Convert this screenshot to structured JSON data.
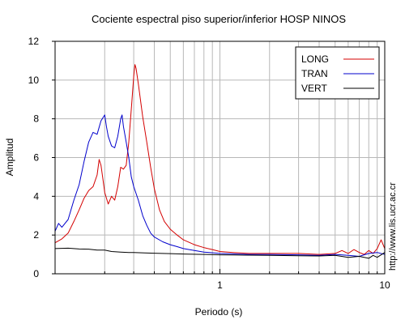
{
  "chart_data": {
    "type": "line",
    "title": "Cociente espectral piso superior/inferior  HOSP NINOS",
    "xlabel": "Periodo (s)",
    "ylabel": "Amplitud",
    "x_scale": "log",
    "xlim": [
      0.1,
      10
    ],
    "ylim": [
      0,
      12
    ],
    "x_tick_labels": [
      {
        "value": 1,
        "label": "1"
      },
      {
        "value": 10,
        "label": "10"
      }
    ],
    "y_ticks": [
      0,
      2,
      4,
      6,
      8,
      10,
      12
    ],
    "grid": true,
    "legend_position": "top-right",
    "series": [
      {
        "name": "LONG",
        "color": "#d40000",
        "points": [
          [
            0.1,
            1.6
          ],
          [
            0.11,
            1.8
          ],
          [
            0.12,
            2.1
          ],
          [
            0.13,
            2.7
          ],
          [
            0.14,
            3.3
          ],
          [
            0.15,
            3.9
          ],
          [
            0.16,
            4.3
          ],
          [
            0.17,
            4.5
          ],
          [
            0.18,
            5.1
          ],
          [
            0.185,
            5.9
          ],
          [
            0.19,
            5.6
          ],
          [
            0.2,
            4.2
          ],
          [
            0.21,
            3.6
          ],
          [
            0.22,
            4.0
          ],
          [
            0.23,
            3.8
          ],
          [
            0.24,
            4.5
          ],
          [
            0.25,
            5.5
          ],
          [
            0.26,
            5.4
          ],
          [
            0.27,
            5.6
          ],
          [
            0.28,
            6.8
          ],
          [
            0.29,
            8.5
          ],
          [
            0.3,
            10.2
          ],
          [
            0.305,
            10.8
          ],
          [
            0.31,
            10.6
          ],
          [
            0.32,
            9.8
          ],
          [
            0.34,
            8.1
          ],
          [
            0.36,
            6.8
          ],
          [
            0.38,
            5.5
          ],
          [
            0.4,
            4.4
          ],
          [
            0.43,
            3.3
          ],
          [
            0.46,
            2.7
          ],
          [
            0.5,
            2.3
          ],
          [
            0.55,
            2.0
          ],
          [
            0.6,
            1.75
          ],
          [
            0.7,
            1.5
          ],
          [
            0.8,
            1.35
          ],
          [
            0.9,
            1.25
          ],
          [
            1.0,
            1.15
          ],
          [
            1.2,
            1.1
          ],
          [
            1.5,
            1.05
          ],
          [
            2.0,
            1.05
          ],
          [
            3.0,
            1.05
          ],
          [
            4.0,
            1.0
          ],
          [
            5.0,
            1.05
          ],
          [
            5.5,
            1.2
          ],
          [
            6.0,
            1.05
          ],
          [
            6.5,
            1.25
          ],
          [
            7.0,
            1.1
          ],
          [
            7.5,
            1.0
          ],
          [
            8.0,
            1.2
          ],
          [
            8.5,
            1.05
          ],
          [
            9.0,
            1.3
          ],
          [
            9.5,
            1.75
          ],
          [
            10.0,
            1.3
          ]
        ]
      },
      {
        "name": "TRAN",
        "color": "#0000cc",
        "points": [
          [
            0.1,
            2.2
          ],
          [
            0.105,
            2.6
          ],
          [
            0.11,
            2.4
          ],
          [
            0.12,
            2.8
          ],
          [
            0.13,
            3.8
          ],
          [
            0.14,
            4.6
          ],
          [
            0.15,
            5.8
          ],
          [
            0.16,
            6.8
          ],
          [
            0.17,
            7.3
          ],
          [
            0.18,
            7.2
          ],
          [
            0.19,
            7.9
          ],
          [
            0.2,
            8.2
          ],
          [
            0.205,
            7.6
          ],
          [
            0.21,
            7.1
          ],
          [
            0.22,
            6.6
          ],
          [
            0.23,
            6.5
          ],
          [
            0.24,
            7.1
          ],
          [
            0.25,
            8.0
          ],
          [
            0.255,
            8.2
          ],
          [
            0.26,
            7.6
          ],
          [
            0.27,
            6.8
          ],
          [
            0.28,
            6.0
          ],
          [
            0.29,
            5.0
          ],
          [
            0.3,
            4.5
          ],
          [
            0.32,
            3.8
          ],
          [
            0.34,
            3.0
          ],
          [
            0.36,
            2.5
          ],
          [
            0.38,
            2.1
          ],
          [
            0.4,
            1.9
          ],
          [
            0.45,
            1.65
          ],
          [
            0.5,
            1.5
          ],
          [
            0.55,
            1.4
          ],
          [
            0.6,
            1.3
          ],
          [
            0.7,
            1.2
          ],
          [
            0.8,
            1.12
          ],
          [
            1.0,
            1.05
          ],
          [
            1.5,
            1.0
          ],
          [
            2.0,
            1.0
          ],
          [
            3.0,
            0.98
          ],
          [
            4.0,
            0.95
          ],
          [
            5.0,
            1.0
          ],
          [
            6.0,
            0.95
          ],
          [
            7.0,
            0.9
          ],
          [
            8.0,
            1.05
          ],
          [
            9.0,
            1.1
          ],
          [
            10.0,
            1.0
          ]
        ]
      },
      {
        "name": "VERT",
        "color": "#000000",
        "points": [
          [
            0.1,
            1.3
          ],
          [
            0.12,
            1.32
          ],
          [
            0.14,
            1.28
          ],
          [
            0.16,
            1.27
          ],
          [
            0.18,
            1.22
          ],
          [
            0.2,
            1.22
          ],
          [
            0.22,
            1.15
          ],
          [
            0.25,
            1.12
          ],
          [
            0.28,
            1.1
          ],
          [
            0.3,
            1.1
          ],
          [
            0.35,
            1.08
          ],
          [
            0.4,
            1.06
          ],
          [
            0.5,
            1.04
          ],
          [
            0.6,
            1.02
          ],
          [
            0.8,
            1.0
          ],
          [
            1.0,
            0.98
          ],
          [
            1.5,
            0.96
          ],
          [
            2.0,
            0.95
          ],
          [
            3.0,
            0.93
          ],
          [
            4.0,
            0.92
          ],
          [
            5.0,
            0.95
          ],
          [
            6.0,
            0.85
          ],
          [
            7.0,
            0.9
          ],
          [
            8.0,
            0.8
          ],
          [
            8.5,
            0.95
          ],
          [
            9.0,
            0.85
          ],
          [
            10.0,
            1.1
          ]
        ]
      }
    ]
  },
  "side_text": "http://www.lis.ucr.ac.cr"
}
